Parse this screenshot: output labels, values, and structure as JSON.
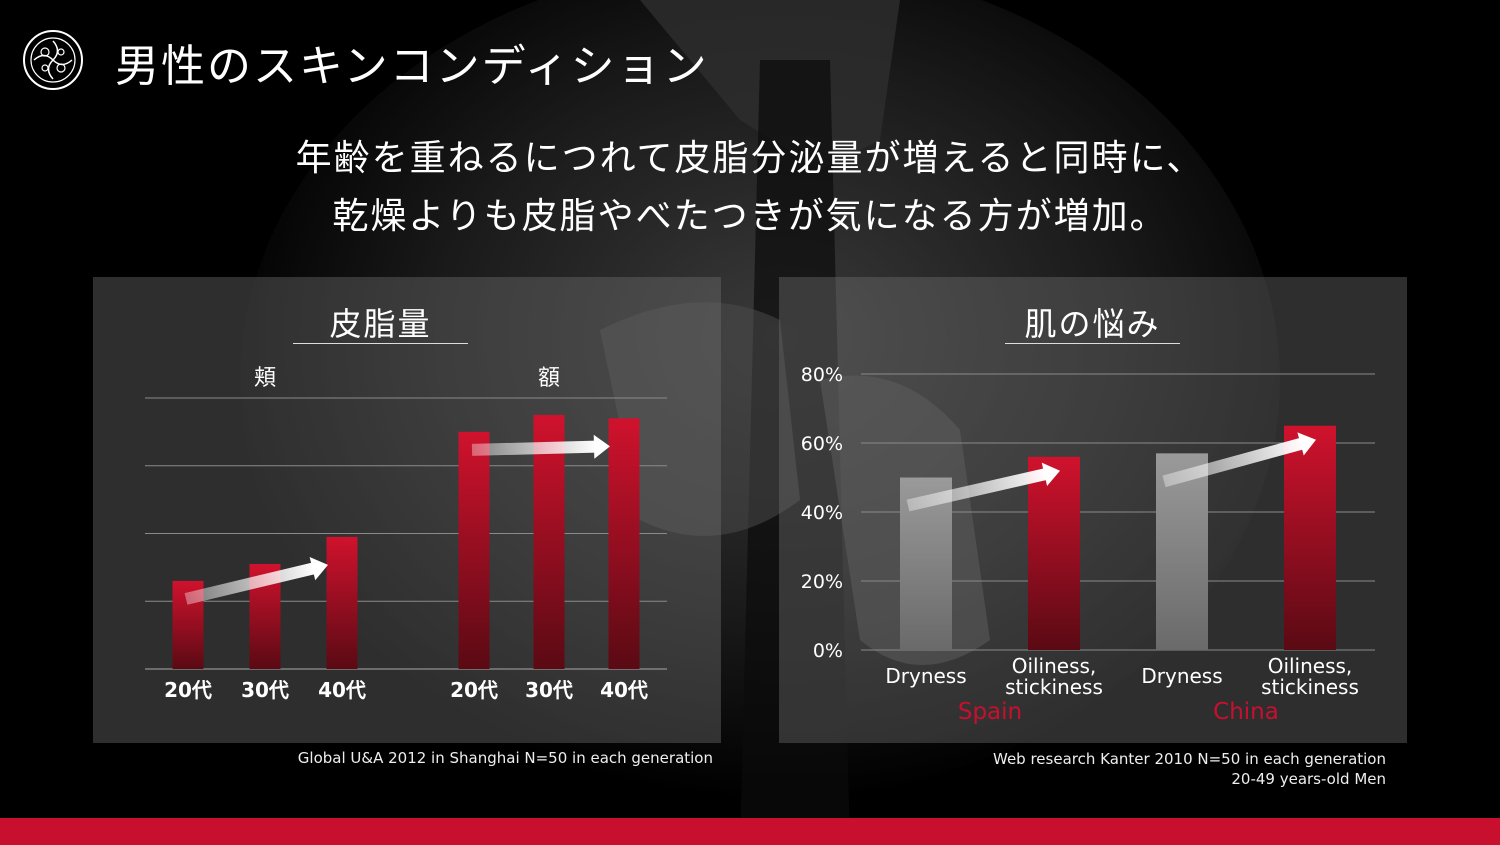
{
  "header": {
    "title": "男性のスキンコンディション",
    "subtitle_line1": "年齢を重ねるにつれて皮脂分泌量が増えると同時に、",
    "subtitle_line2": "乾燥よりも皮脂やべたつきが気になる方が増加。"
  },
  "colors": {
    "accent_red": "#c8102e",
    "bar_red_top": "#d0122d",
    "bar_red_bottom": "#5a0a14",
    "bar_gray": "#8c8c8c",
    "footer_bar": "#c8102e"
  },
  "chart_data": [
    {
      "type": "bar",
      "title": "皮脂量",
      "groups": [
        {
          "label": "頬",
          "categories": [
            "20代",
            "30代",
            "40代"
          ],
          "values": [
            26,
            31,
            39
          ]
        },
        {
          "label": "額",
          "categories": [
            "20代",
            "30代",
            "40代"
          ],
          "values": [
            70,
            75,
            74
          ]
        }
      ],
      "ylim": [
        0,
        80
      ],
      "yticks": [
        0,
        20,
        40,
        60,
        80
      ],
      "show_y_labels": false,
      "grid": true,
      "trend_arrows": true,
      "source": "Global U&A 2012 in Shanghai   N=50 in each generation"
    },
    {
      "type": "bar",
      "title": "肌の悩み",
      "groups": [
        {
          "label": "Spain",
          "categories": [
            "Dryness",
            "Oiliness, stickiness"
          ],
          "values": [
            50,
            56
          ],
          "colors": [
            "gray",
            "red"
          ]
        },
        {
          "label": "China",
          "categories": [
            "Dryness",
            "Oiliness, stickiness"
          ],
          "values": [
            57,
            65
          ],
          "colors": [
            "gray",
            "red"
          ]
        }
      ],
      "ylim": [
        0,
        80
      ],
      "yticks": [
        "0%",
        "20%",
        "40%",
        "60%",
        "80%"
      ],
      "grid": true,
      "trend_arrows": true,
      "source_line1": "Web research Kanter 2010 N=50 in each generation",
      "source_line2": "20-49 years-old Men"
    }
  ]
}
